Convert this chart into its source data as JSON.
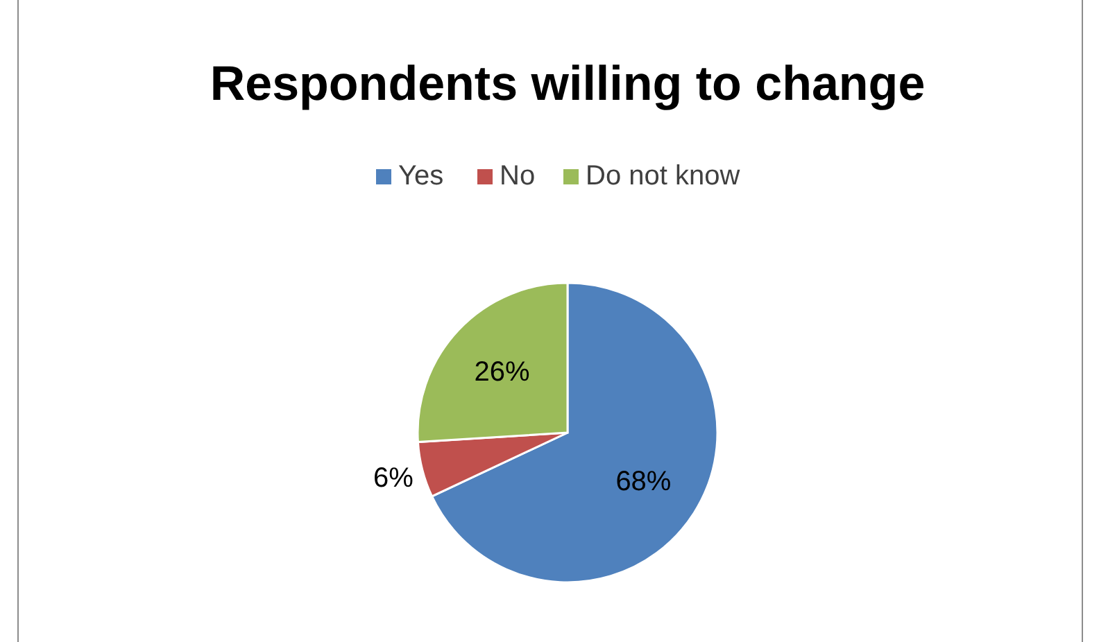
{
  "chart_data": {
    "type": "pie",
    "title": "Respondents willing to change",
    "categories": [
      "Yes",
      "No",
      "Do not know"
    ],
    "values": [
      68,
      6,
      26
    ],
    "colors": [
      "#4f81bd",
      "#c0504d",
      "#9bbb59"
    ],
    "value_labels": [
      "68%",
      "6%",
      "26%"
    ],
    "legend": "top"
  }
}
